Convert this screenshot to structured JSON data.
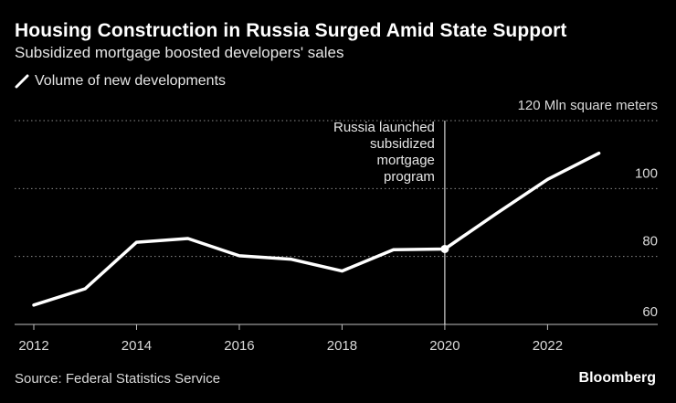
{
  "header": {
    "title": "Housing Construction in Russia Surged Amid State Support",
    "subtitle": "Subsidized mortgage boosted developers' sales"
  },
  "legend": {
    "label": "Volume of new developments",
    "icon": "slash-line-icon"
  },
  "footer": {
    "source": "Source: Federal Statistics Service",
    "brand": "Bloomberg"
  },
  "colors": {
    "background": "#000000",
    "line": "#ffffff",
    "grid": "#8c8c8c",
    "text": "#e6e6e6"
  },
  "chart_data": {
    "type": "line",
    "title": "Housing Construction in Russia Surged Amid State Support",
    "subtitle": "Subsidized mortgage boosted developers' sales",
    "xlabel": "",
    "ylabel": "",
    "ylim": [
      60,
      120
    ],
    "xlim": [
      2012,
      2023.7
    ],
    "grid": true,
    "y_unit_label": "120 Mln square meters",
    "x_ticks": [
      2012,
      2014,
      2016,
      2018,
      2020,
      2022
    ],
    "y_ticks": [
      {
        "value": 60,
        "label": "60"
      },
      {
        "value": 80,
        "label": "80"
      },
      {
        "value": 100,
        "label": "100"
      },
      {
        "value": 120,
        "label": "120 Mln square meters"
      }
    ],
    "series": [
      {
        "name": "Volume of new developments",
        "x": [
          2012,
          2013,
          2014,
          2015,
          2016,
          2017,
          2018,
          2019,
          2020,
          2021,
          2022,
          2023
        ],
        "values": [
          65.7,
          70.5,
          84.2,
          85.3,
          80.2,
          79.2,
          75.7,
          82.0,
          82.2,
          92.6,
          102.7,
          110.4
        ]
      }
    ],
    "annotation": {
      "x": 2020,
      "lines": [
        "Russia launched",
        "subsidized",
        "mortgage",
        "program"
      ]
    }
  }
}
